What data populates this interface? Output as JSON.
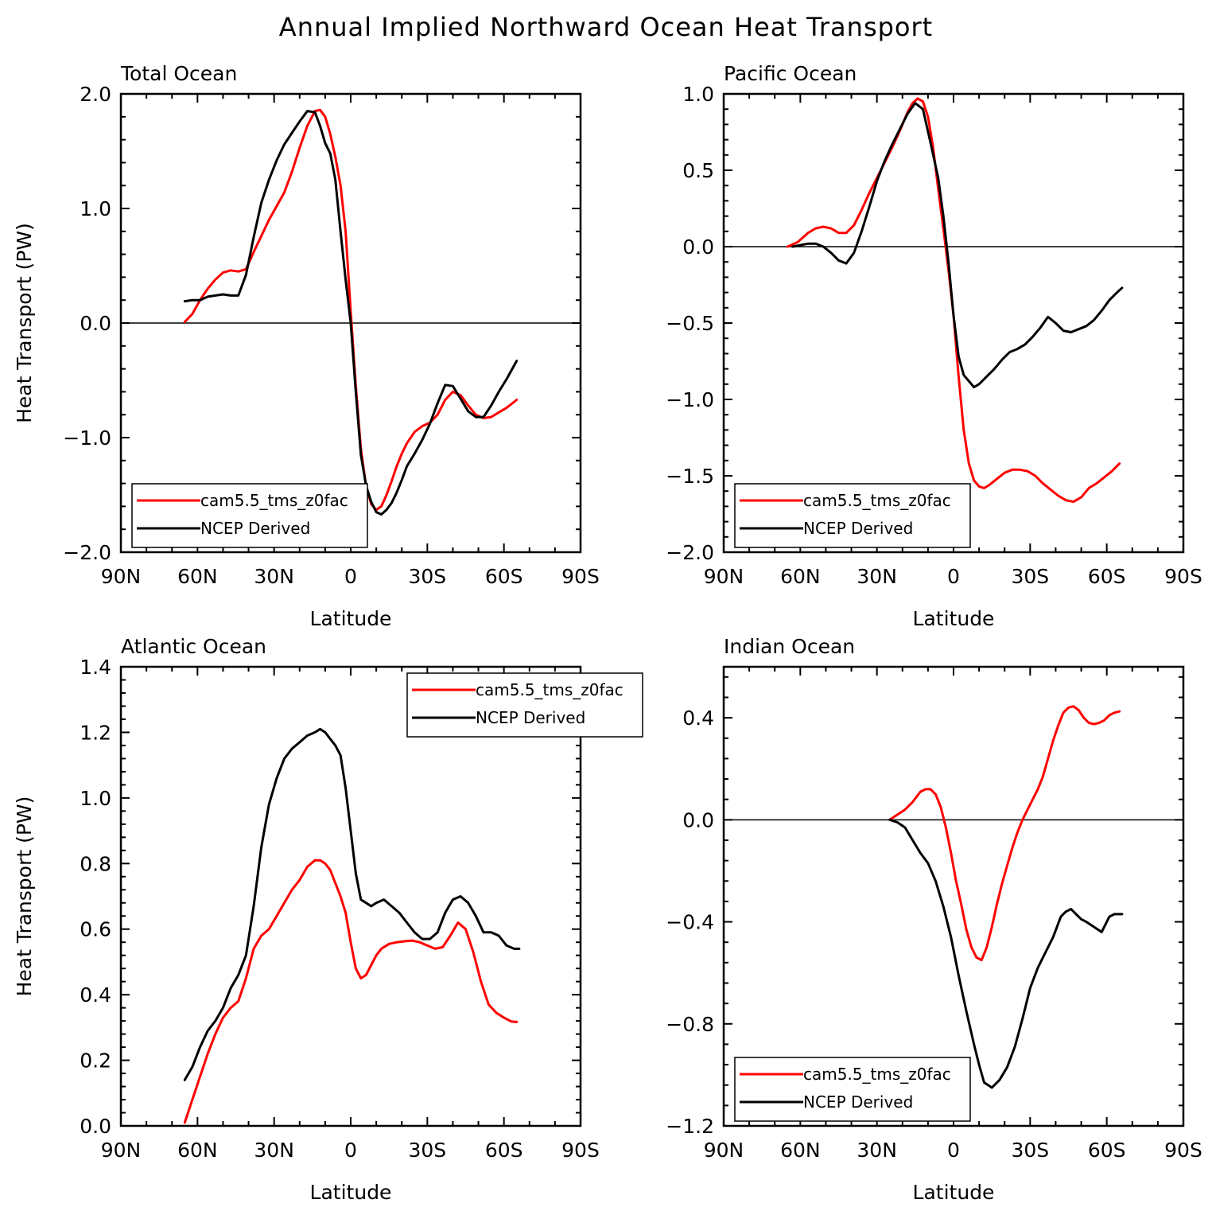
{
  "figure": {
    "title": "Annual Implied Northward Ocean Heat Transport"
  },
  "colors": {
    "model": "#ff0000",
    "obs": "#000000",
    "frame": "#000000"
  },
  "chart_data": [
    {
      "type": "line",
      "title": "Total Ocean",
      "xlabel": "Latitude",
      "ylabel": "Heat Transport (PW)",
      "xlim": [
        -90,
        90
      ],
      "ylim": [
        -2.0,
        2.0
      ],
      "xticks": [
        -90,
        -60,
        -30,
        0,
        30,
        60,
        90
      ],
      "xtick_labels": [
        "90N",
        "60N",
        "30N",
        "0",
        "30S",
        "60S",
        "90S"
      ],
      "yticks": [
        -2.0,
        -1.0,
        0.0,
        1.0,
        2.0
      ],
      "ytick_labels": [
        "−2.0",
        "−1.0",
        "0.0",
        "1.0",
        "2.0"
      ],
      "zero_line": true,
      "legend_position": "bottom-left",
      "legend": [
        "cam5.5_tms_z0fac",
        "NCEP Derived"
      ],
      "series": [
        {
          "name": "cam5.5_tms_z0fac",
          "color": "#ff0000",
          "x": [
            -65,
            -62,
            -59,
            -56,
            -53,
            -50,
            -47,
            -44,
            -41,
            -38,
            -35,
            -32,
            -29,
            -26,
            -23,
            -20,
            -17,
            -14,
            -12,
            -10,
            -8,
            -6,
            -4,
            -2,
            0,
            2,
            4,
            6,
            8,
            10,
            12,
            14,
            16,
            18,
            20,
            22,
            25,
            28,
            31,
            34,
            37,
            40,
            43,
            46,
            49,
            52,
            55,
            58,
            61,
            65
          ],
          "y": [
            0.01,
            0.08,
            0.2,
            0.3,
            0.38,
            0.44,
            0.46,
            0.45,
            0.47,
            0.62,
            0.76,
            0.9,
            1.02,
            1.14,
            1.32,
            1.53,
            1.72,
            1.85,
            1.86,
            1.8,
            1.65,
            1.45,
            1.2,
            0.8,
            0.1,
            -0.55,
            -1.1,
            -1.42,
            -1.58,
            -1.63,
            -1.6,
            -1.5,
            -1.38,
            -1.25,
            -1.14,
            -1.05,
            -0.95,
            -0.9,
            -0.87,
            -0.8,
            -0.67,
            -0.6,
            -0.63,
            -0.72,
            -0.8,
            -0.83,
            -0.82,
            -0.78,
            -0.74,
            -0.67
          ]
        },
        {
          "name": "NCEP Derived",
          "color": "#000000",
          "x": [
            -65,
            -62,
            -59,
            -56,
            -53,
            -50,
            -47,
            -44,
            -41,
            -38,
            -35,
            -32,
            -29,
            -26,
            -23,
            -20,
            -17,
            -14,
            -12,
            -10,
            -8,
            -6,
            -4,
            -2,
            0,
            2,
            4,
            6,
            8,
            10,
            12,
            14,
            16,
            18,
            20,
            22,
            25,
            28,
            31,
            34,
            37,
            40,
            43,
            46,
            49,
            52,
            55,
            58,
            61,
            65
          ],
          "y": [
            0.19,
            0.2,
            0.2,
            0.23,
            0.24,
            0.25,
            0.24,
            0.24,
            0.42,
            0.75,
            1.05,
            1.25,
            1.42,
            1.56,
            1.66,
            1.76,
            1.85,
            1.84,
            1.72,
            1.57,
            1.48,
            1.25,
            0.8,
            0.38,
            0.0,
            -0.6,
            -1.15,
            -1.42,
            -1.56,
            -1.65,
            -1.67,
            -1.63,
            -1.57,
            -1.48,
            -1.37,
            -1.25,
            -1.14,
            -1.02,
            -0.88,
            -0.7,
            -0.54,
            -0.55,
            -0.66,
            -0.77,
            -0.82,
            -0.82,
            -0.72,
            -0.6,
            -0.49,
            -0.33
          ]
        }
      ]
    },
    {
      "type": "line",
      "title": "Pacific Ocean",
      "xlabel": "Latitude",
      "ylabel": "",
      "xlim": [
        -90,
        90
      ],
      "ylim": [
        -2.0,
        1.0
      ],
      "xticks": [
        -90,
        -60,
        -30,
        0,
        30,
        60,
        90
      ],
      "xtick_labels": [
        "90N",
        "60N",
        "30N",
        "0",
        "30S",
        "60S",
        "90S"
      ],
      "yticks": [
        -2.0,
        -1.5,
        -1.0,
        -0.5,
        0.0,
        0.5,
        1.0
      ],
      "ytick_labels": [
        "−2.0",
        "−1.5",
        "−1.0",
        "−0.5",
        "0.0",
        "0.5",
        "1.0"
      ],
      "zero_line": true,
      "legend_position": "bottom-left",
      "legend": [
        "cam5.5_tms_z0fac",
        "NCEP Derived"
      ],
      "series": [
        {
          "name": "cam5.5_tms_z0fac",
          "color": "#ff0000",
          "x": [
            -65,
            -61,
            -57,
            -54,
            -51,
            -48,
            -45,
            -42,
            -39,
            -36,
            -33,
            -30,
            -27,
            -24,
            -21,
            -18,
            -16,
            -14,
            -12,
            -10,
            -8,
            -6,
            -4,
            -2,
            0,
            2,
            4,
            6,
            8,
            10,
            12,
            14,
            17,
            20,
            23,
            26,
            29,
            32,
            35,
            38,
            41,
            44,
            47,
            50,
            53,
            56,
            59,
            62,
            65
          ],
          "y": [
            0.0,
            0.03,
            0.09,
            0.12,
            0.13,
            0.12,
            0.09,
            0.09,
            0.14,
            0.24,
            0.35,
            0.45,
            0.55,
            0.65,
            0.76,
            0.88,
            0.94,
            0.97,
            0.95,
            0.85,
            0.65,
            0.38,
            0.12,
            -0.15,
            -0.45,
            -0.85,
            -1.2,
            -1.42,
            -1.53,
            -1.57,
            -1.58,
            -1.56,
            -1.52,
            -1.48,
            -1.46,
            -1.46,
            -1.47,
            -1.5,
            -1.55,
            -1.59,
            -1.63,
            -1.66,
            -1.67,
            -1.64,
            -1.58,
            -1.55,
            -1.51,
            -1.47,
            -1.42
          ]
        },
        {
          "name": "NCEP Derived",
          "color": "#000000",
          "x": [
            -63,
            -60,
            -57,
            -54,
            -51,
            -48,
            -45,
            -42,
            -39,
            -36,
            -33,
            -30,
            -27,
            -24,
            -21,
            -18,
            -15,
            -12,
            -9,
            -6,
            -4,
            -2,
            0,
            2,
            4,
            6,
            8,
            10,
            13,
            16,
            19,
            22,
            25,
            28,
            31,
            34,
            37,
            40,
            43,
            46,
            49,
            52,
            55,
            58,
            61,
            64,
            66
          ],
          "y": [
            0.0,
            0.01,
            0.02,
            0.02,
            0.0,
            -0.04,
            -0.09,
            -0.11,
            -0.04,
            0.1,
            0.26,
            0.43,
            0.56,
            0.67,
            0.77,
            0.87,
            0.94,
            0.9,
            0.68,
            0.45,
            0.2,
            -0.1,
            -0.45,
            -0.72,
            -0.84,
            -0.88,
            -0.92,
            -0.9,
            -0.85,
            -0.8,
            -0.74,
            -0.69,
            -0.67,
            -0.64,
            -0.59,
            -0.53,
            -0.46,
            -0.5,
            -0.55,
            -0.56,
            -0.54,
            -0.52,
            -0.48,
            -0.42,
            -0.35,
            -0.3,
            -0.27
          ]
        }
      ]
    },
    {
      "type": "line",
      "title": "Atlantic Ocean",
      "xlabel": "Latitude",
      "ylabel": "Heat Transport (PW)",
      "xlim": [
        -90,
        90
      ],
      "ylim": [
        0.0,
        1.4
      ],
      "xticks": [
        -90,
        -60,
        -30,
        0,
        30,
        60,
        90
      ],
      "xtick_labels": [
        "90N",
        "60N",
        "30N",
        "0",
        "30S",
        "60S",
        "90S"
      ],
      "yticks": [
        0.0,
        0.2,
        0.4,
        0.6,
        0.8,
        1.0,
        1.2,
        1.4
      ],
      "ytick_labels": [
        "0.0",
        "0.2",
        "0.4",
        "0.6",
        "0.8",
        "1.0",
        "1.2",
        "1.4"
      ],
      "zero_line": false,
      "legend_position": "top-right",
      "legend": [
        "cam5.5_tms_z0fac",
        "NCEP Derived"
      ],
      "series": [
        {
          "name": "cam5.5_tms_z0fac",
          "color": "#ff0000",
          "x": [
            -65,
            -62,
            -59,
            -56,
            -53,
            -50,
            -47,
            -44,
            -41,
            -38,
            -35,
            -32,
            -29,
            -26,
            -23,
            -20,
            -17,
            -14,
            -12,
            -10,
            -8,
            -6,
            -4,
            -2,
            0,
            2,
            4,
            6,
            8,
            10,
            12,
            15,
            18,
            21,
            24,
            27,
            30,
            33,
            36,
            39,
            42,
            45,
            48,
            51,
            54,
            57,
            60,
            63,
            65
          ],
          "y": [
            0.01,
            0.08,
            0.15,
            0.22,
            0.28,
            0.33,
            0.36,
            0.38,
            0.45,
            0.54,
            0.58,
            0.6,
            0.64,
            0.68,
            0.72,
            0.75,
            0.79,
            0.81,
            0.81,
            0.8,
            0.78,
            0.74,
            0.7,
            0.65,
            0.56,
            0.48,
            0.45,
            0.46,
            0.49,
            0.52,
            0.54,
            0.555,
            0.56,
            0.563,
            0.565,
            0.56,
            0.55,
            0.54,
            0.545,
            0.58,
            0.62,
            0.6,
            0.53,
            0.44,
            0.37,
            0.345,
            0.33,
            0.318,
            0.317
          ]
        },
        {
          "name": "NCEP Derived",
          "color": "#000000",
          "x": [
            -65,
            -62,
            -59,
            -56,
            -53,
            -50,
            -47,
            -44,
            -41,
            -38,
            -35,
            -32,
            -29,
            -26,
            -23,
            -20,
            -17,
            -14,
            -12,
            -10,
            -8,
            -6,
            -4,
            -2,
            0,
            2,
            4,
            6,
            8,
            10,
            13,
            16,
            19,
            22,
            25,
            28,
            31,
            34,
            37,
            40,
            43,
            46,
            49,
            52,
            55,
            58,
            61,
            64,
            66
          ],
          "y": [
            0.14,
            0.18,
            0.24,
            0.29,
            0.32,
            0.36,
            0.42,
            0.46,
            0.52,
            0.67,
            0.85,
            0.98,
            1.06,
            1.12,
            1.15,
            1.17,
            1.19,
            1.2,
            1.21,
            1.2,
            1.18,
            1.16,
            1.13,
            1.03,
            0.9,
            0.77,
            0.69,
            0.68,
            0.67,
            0.68,
            0.69,
            0.67,
            0.65,
            0.62,
            0.59,
            0.57,
            0.57,
            0.59,
            0.65,
            0.69,
            0.7,
            0.68,
            0.64,
            0.59,
            0.59,
            0.58,
            0.55,
            0.54,
            0.54
          ]
        }
      ]
    },
    {
      "type": "line",
      "title": "Indian Ocean",
      "xlabel": "Latitude",
      "ylabel": "",
      "xlim": [
        -90,
        90
      ],
      "ylim": [
        -1.2,
        0.6
      ],
      "xticks": [
        -90,
        -60,
        -30,
        0,
        30,
        60,
        90
      ],
      "xtick_labels": [
        "90N",
        "60N",
        "30N",
        "0",
        "30S",
        "60S",
        "90S"
      ],
      "yticks": [
        -1.2,
        -0.8,
        -0.4,
        0.0,
        0.4
      ],
      "ytick_labels": [
        "−1.2",
        "−0.8",
        "−0.4",
        "0.0",
        "0.4"
      ],
      "zero_line": true,
      "legend_position": "bottom-left",
      "legend": [
        "cam5.5_tms_z0fac",
        "NCEP Derived"
      ],
      "series": [
        {
          "name": "cam5.5_tms_z0fac",
          "color": "#ff0000",
          "x": [
            -25,
            -22,
            -19,
            -16,
            -13,
            -11,
            -9,
            -7,
            -5,
            -3,
            -1,
            1,
            3,
            5,
            7,
            9,
            11,
            13,
            15,
            17,
            19,
            21,
            23,
            25,
            27,
            29,
            31,
            33,
            35,
            37,
            39,
            41,
            43,
            45,
            47,
            49,
            51,
            53,
            55,
            57,
            59,
            61,
            63,
            65
          ],
          "y": [
            0.0,
            0.02,
            0.04,
            0.07,
            0.11,
            0.12,
            0.12,
            0.1,
            0.05,
            -0.03,
            -0.13,
            -0.24,
            -0.33,
            -0.43,
            -0.5,
            -0.54,
            -0.55,
            -0.5,
            -0.42,
            -0.33,
            -0.25,
            -0.18,
            -0.11,
            -0.05,
            0.0,
            0.04,
            0.08,
            0.12,
            0.17,
            0.24,
            0.31,
            0.37,
            0.42,
            0.44,
            0.445,
            0.43,
            0.4,
            0.38,
            0.375,
            0.38,
            0.39,
            0.41,
            0.42,
            0.425
          ]
        },
        {
          "name": "NCEP Derived",
          "color": "#000000",
          "x": [
            -25,
            -22,
            -19,
            -16,
            -13,
            -10,
            -7,
            -4,
            -1,
            2,
            5,
            8,
            10,
            12,
            15,
            18,
            21,
            24,
            27,
            30,
            33,
            36,
            39,
            42,
            44,
            46,
            48,
            50,
            52,
            55,
            58,
            61,
            63,
            66
          ],
          "y": [
            0.0,
            -0.01,
            -0.03,
            -0.08,
            -0.13,
            -0.17,
            -0.24,
            -0.34,
            -0.46,
            -0.61,
            -0.75,
            -0.88,
            -0.96,
            -1.03,
            -1.05,
            -1.02,
            -0.97,
            -0.89,
            -0.78,
            -0.66,
            -0.58,
            -0.52,
            -0.46,
            -0.38,
            -0.36,
            -0.35,
            -0.37,
            -0.39,
            -0.4,
            -0.42,
            -0.44,
            -0.38,
            -0.37,
            -0.37
          ]
        }
      ]
    }
  ]
}
